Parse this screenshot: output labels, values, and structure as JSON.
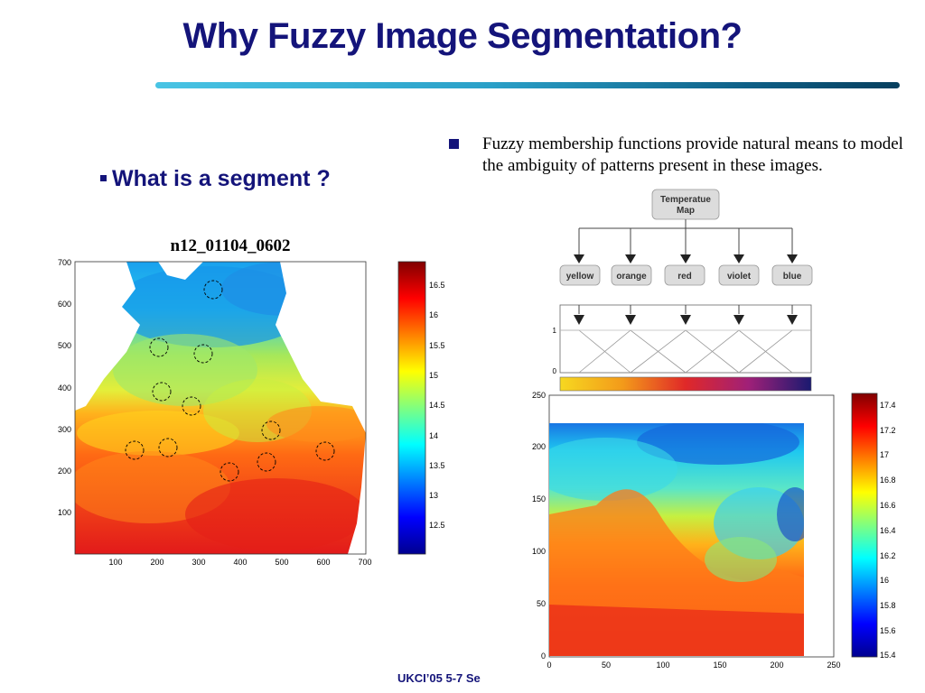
{
  "slide": {
    "title": "Why Fuzzy Image Segmentation?",
    "left_bullet": "What is a segment ?",
    "right_bullet": "Fuzzy membership functions provide natural means to model the ambiguity of patterns present in these images.",
    "footer": "UKCI’05 5-7 Se"
  },
  "left_map": {
    "title": "n12_01104_0602",
    "x_ticks": [
      "100",
      "200",
      "300",
      "400",
      "500",
      "600",
      "700"
    ],
    "y_ticks": [
      "700",
      "600",
      "500",
      "400",
      "300",
      "200",
      "100"
    ],
    "colorbar_ticks": [
      "16.5",
      "16",
      "15.5",
      "15",
      "14.5",
      "14",
      "13.5",
      "13",
      "12.5"
    ],
    "circles": 12
  },
  "diagram": {
    "root_label_1": "Temperatue",
    "root_label_2": "Map",
    "classes": [
      "yellow",
      "orange",
      "red",
      "violet",
      "blue"
    ],
    "y_ticks": [
      "1",
      "0"
    ]
  },
  "right_map": {
    "x_ticks": [
      "0",
      "50",
      "100",
      "150",
      "200",
      "250"
    ],
    "y_ticks": [
      "250",
      "200",
      "150",
      "100",
      "50",
      "0"
    ],
    "colorbar_ticks": [
      "17.4",
      "17.2",
      "17",
      "16.8",
      "16.6",
      "16.4",
      "16.2",
      "16",
      "15.8",
      "15.6",
      "15.4"
    ]
  },
  "colors": {
    "title": "#14147a",
    "rule_start": "#49c4e4",
    "rule_end": "#073f5e"
  }
}
